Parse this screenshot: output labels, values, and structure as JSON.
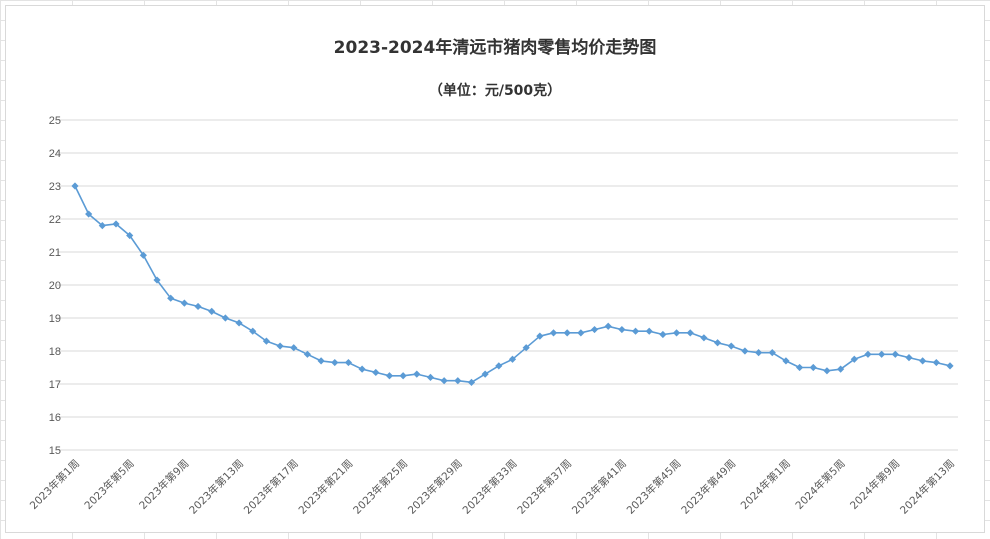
{
  "chart_data": {
    "type": "line",
    "title": "2023-2024年清远市猪肉零售均价走势图",
    "subtitle": "（单位：元/500克）",
    "xlabel": "",
    "ylabel": "",
    "ylim": [
      15,
      25
    ],
    "yticks": [
      15,
      16,
      17,
      18,
      19,
      20,
      21,
      22,
      23,
      24,
      25
    ],
    "grid": true,
    "legend": "none",
    "line_color": "#5b9bd5",
    "categories": [
      "2023年第1周",
      "2023年第2周",
      "2023年第3周",
      "2023年第4周",
      "2023年第5周",
      "2023年第6周",
      "2023年第7周",
      "2023年第8周",
      "2023年第9周",
      "2023年第10周",
      "2023年第11周",
      "2023年第12周",
      "2023年第13周",
      "2023年第14周",
      "2023年第15周",
      "2023年第16周",
      "2023年第17周",
      "2023年第18周",
      "2023年第19周",
      "2023年第20周",
      "2023年第21周",
      "2023年第22周",
      "2023年第23周",
      "2023年第24周",
      "2023年第25周",
      "2023年第26周",
      "2023年第27周",
      "2023年第28周",
      "2023年第29周",
      "2023年第30周",
      "2023年第31周",
      "2023年第32周",
      "2023年第33周",
      "2023年第34周",
      "2023年第35周",
      "2023年第36周",
      "2023年第37周",
      "2023年第38周",
      "2023年第39周",
      "2023年第40周",
      "2023年第41周",
      "2023年第42周",
      "2023年第43周",
      "2023年第44周",
      "2023年第45周",
      "2023年第46周",
      "2023年第47周",
      "2023年第48周",
      "2023年第49周",
      "2023年第50周",
      "2023年第51周",
      "2023年第52周",
      "2024年第1周",
      "2024年第2周",
      "2024年第3周",
      "2024年第4周",
      "2024年第5周",
      "2024年第6周",
      "2024年第7周",
      "2024年第8周",
      "2024年第9周",
      "2024年第10周",
      "2024年第11周",
      "2024年第12周",
      "2024年第13周"
    ],
    "x_tick_labels_shown": [
      "2023年第1周",
      "2023年第5周",
      "2023年第9周",
      "2023年第13周",
      "2023年第17周",
      "2023年第21周",
      "2023年第25周",
      "2023年第29周",
      "2023年第33周",
      "2023年第37周",
      "2023年第41周",
      "2023年第45周",
      "2023年第49周",
      "2024年第1周",
      "2024年第5周",
      "2024年第9周",
      "2024年第13周"
    ],
    "series": [
      {
        "values": [
          23.0,
          22.15,
          21.8,
          21.85,
          21.5,
          20.9,
          20.15,
          19.6,
          19.45,
          19.35,
          19.2,
          19.0,
          18.85,
          18.6,
          18.3,
          18.15,
          18.1,
          17.9,
          17.7,
          17.65,
          17.65,
          17.45,
          17.35,
          17.25,
          17.25,
          17.3,
          17.2,
          17.1,
          17.1,
          17.05,
          17.3,
          17.55,
          17.75,
          18.1,
          18.45,
          18.55,
          18.55,
          18.55,
          18.65,
          18.75,
          18.65,
          18.6,
          18.6,
          18.5,
          18.55,
          18.55,
          18.4,
          18.25,
          18.15,
          18.0,
          17.95,
          17.95,
          17.7,
          17.5,
          17.5,
          17.4,
          17.45,
          17.75,
          17.9,
          17.9,
          17.9,
          17.8,
          17.7,
          17.65,
          17.55
        ]
      }
    ]
  }
}
